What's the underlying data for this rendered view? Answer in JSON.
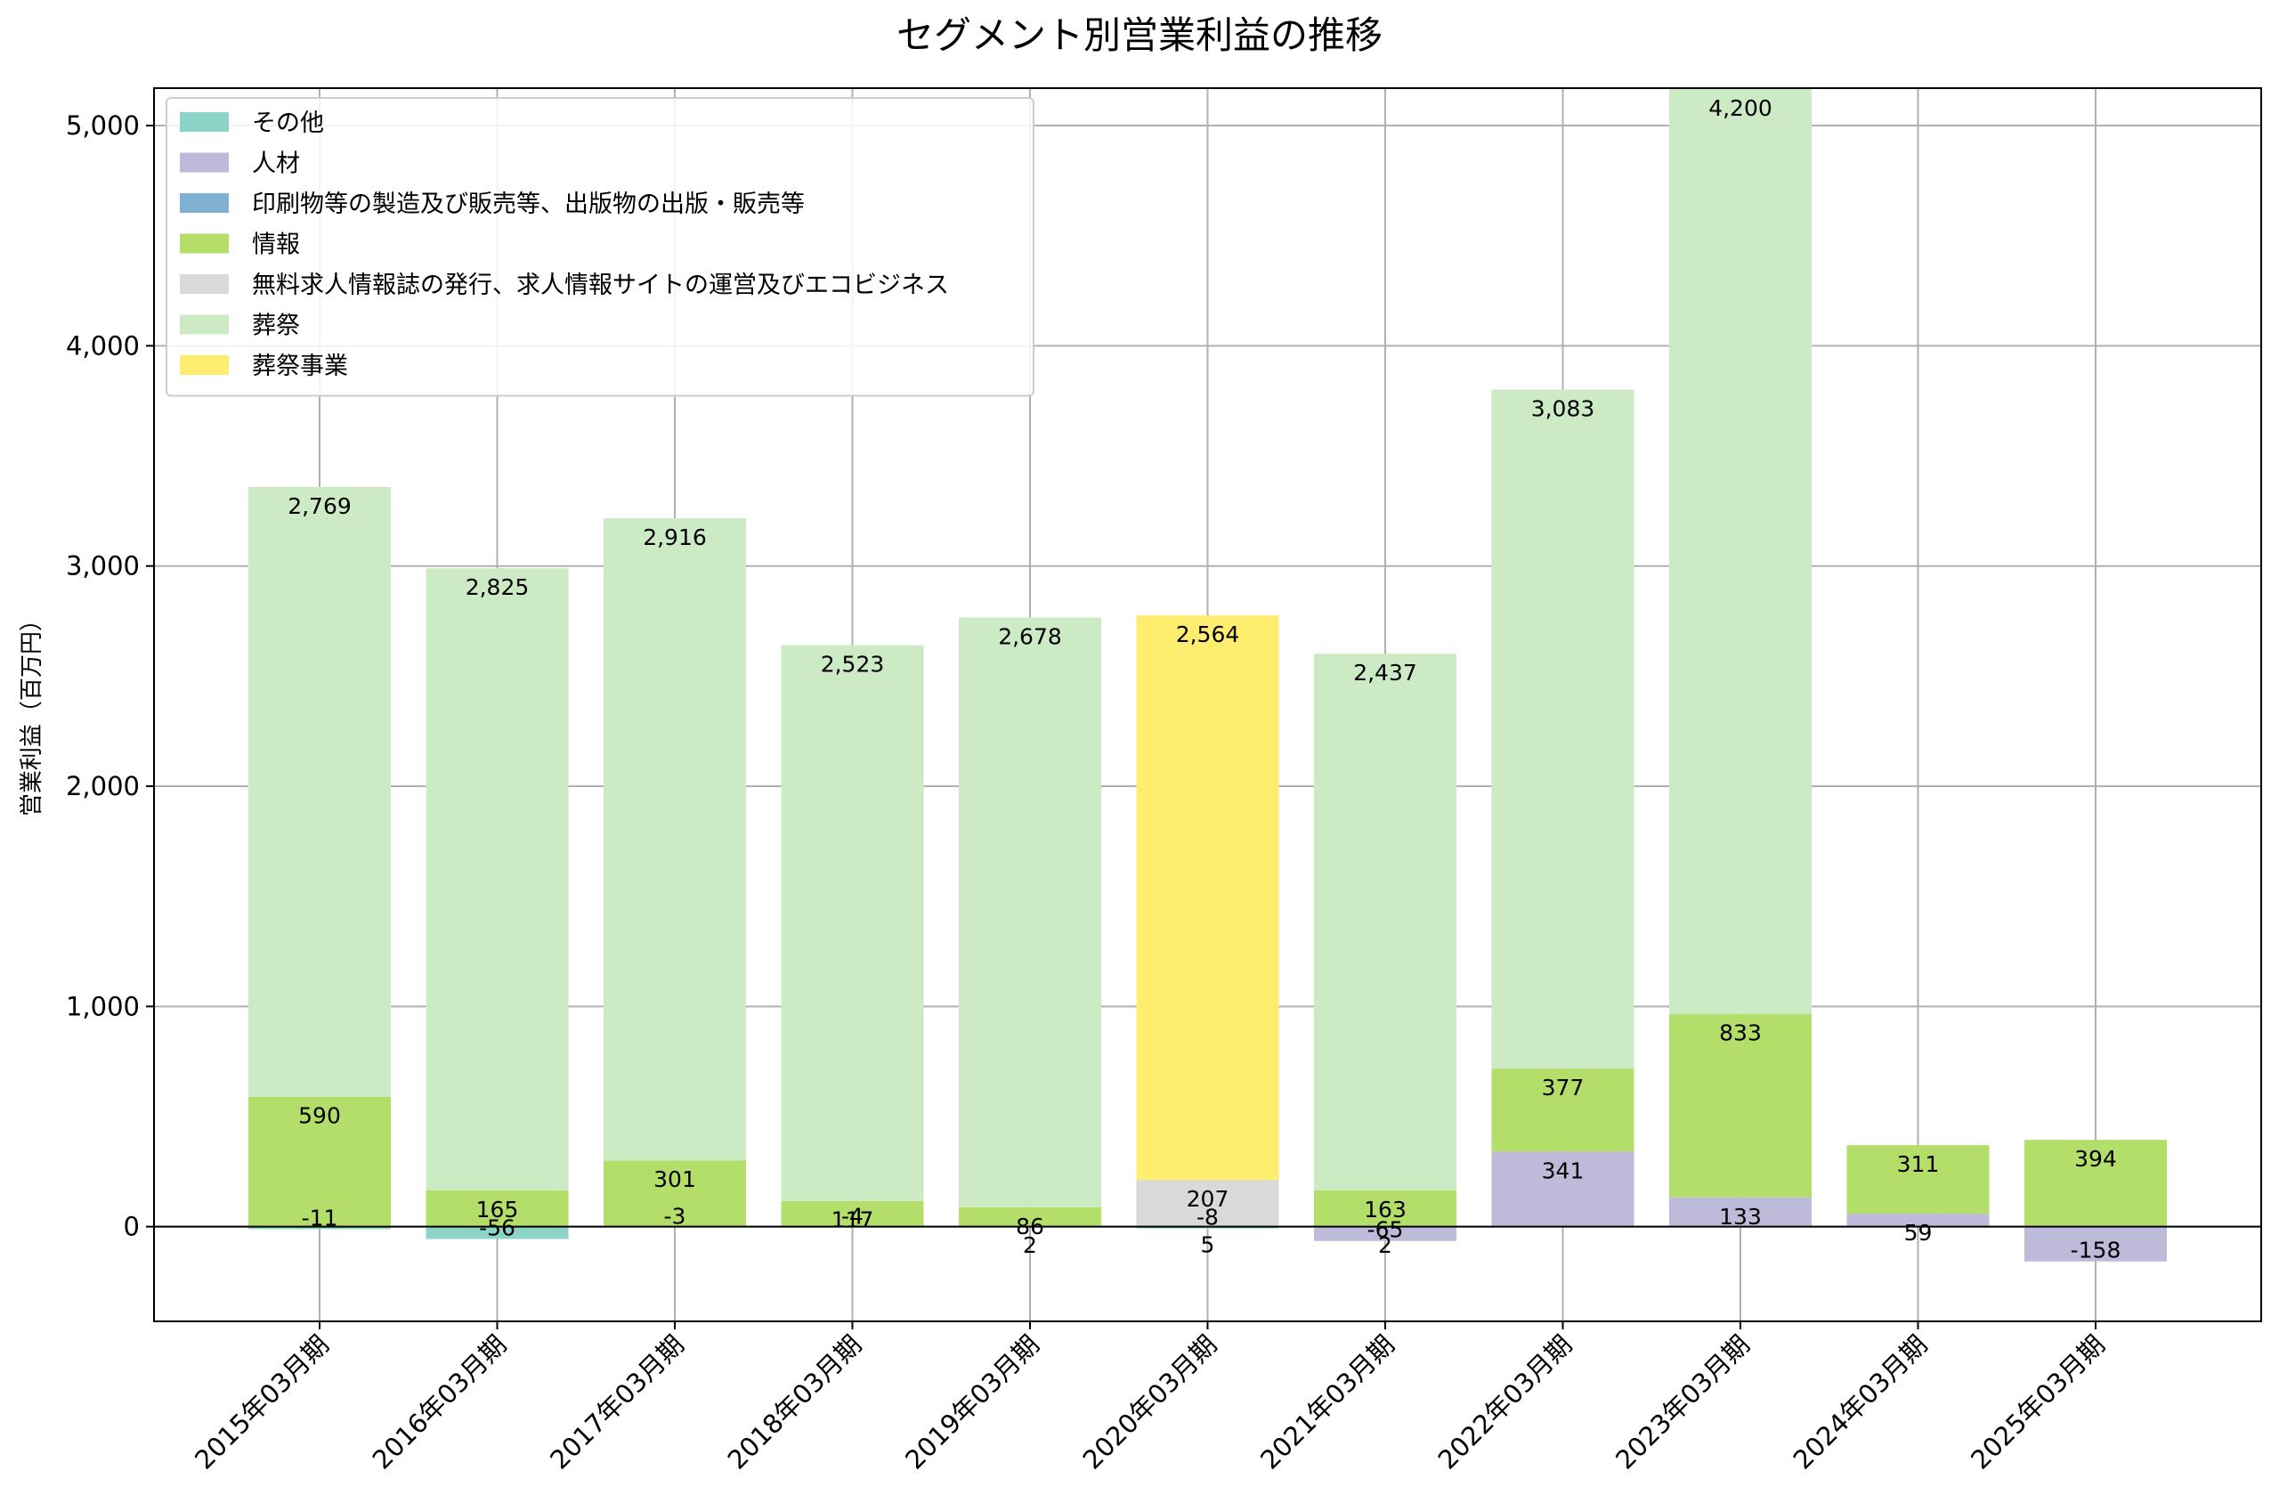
{
  "chart_data": {
    "type": "bar",
    "stacked": true,
    "title": "セグメント別営業利益の推移",
    "xlabel": "",
    "ylabel": "営業利益（百万円）",
    "ylim": [
      -430,
      5170
    ],
    "yticks": [
      0,
      1000,
      2000,
      3000,
      4000,
      5000
    ],
    "ytick_labels": [
      "0",
      "1,000",
      "2,000",
      "3,000",
      "4,000",
      "5,000"
    ],
    "grid": true,
    "legend_position": "upper-left",
    "categories": [
      "2015年03月期",
      "2016年03月期",
      "2017年03月期",
      "2018年03月期",
      "2019年03月期",
      "2020年03月期",
      "2021年03月期",
      "2022年03月期",
      "2023年03月期",
      "2024年03月期",
      "2025年03月期"
    ],
    "series": [
      {
        "name": "その他",
        "color": "#8dd3c7",
        "values": [
          -11,
          -56,
          -3,
          -4,
          null,
          -8,
          2,
          null,
          null,
          null,
          null
        ],
        "labels": [
          "-11",
          "-56",
          "-3",
          "-4",
          "",
          "-8",
          "2",
          "",
          "",
          "",
          ""
        ]
      },
      {
        "name": "人材",
        "color": "#bebada",
        "values": [
          null,
          null,
          null,
          null,
          null,
          null,
          -65,
          341,
          133,
          59,
          -158
        ],
        "labels": [
          "",
          "",
          "",
          "",
          "",
          "",
          "-65",
          "341",
          "133",
          "59",
          "-158"
        ]
      },
      {
        "name": "印刷物等の製造及び販売等、出版物の出版・販売等",
        "color": "#80b1d3",
        "values": [
          null,
          null,
          null,
          null,
          2,
          5,
          null,
          null,
          null,
          null,
          null
        ],
        "labels": [
          "",
          "",
          "",
          "",
          "2",
          "5",
          "",
          "",
          "",
          "",
          ""
        ]
      },
      {
        "name": "情報",
        "color": "#b3de69",
        "values": [
          590,
          165,
          301,
          117,
          86,
          null,
          163,
          377,
          833,
          311,
          394
        ],
        "labels": [
          "590",
          "165",
          "301",
          "117",
          "86",
          "",
          "163",
          "377",
          "833",
          "311",
          "394"
        ]
      },
      {
        "name": "無料求人情報誌の発行、求人情報サイトの運営及びエコビジネス",
        "color": "#d9d9d9",
        "values": [
          null,
          null,
          null,
          null,
          null,
          207,
          null,
          null,
          null,
          null,
          null
        ],
        "labels": [
          "",
          "",
          "",
          "",
          "",
          "207",
          "",
          "",
          "",
          "",
          ""
        ]
      },
      {
        "name": "葬祭",
        "color": "#ccebc5",
        "values": [
          2769,
          2825,
          2916,
          2523,
          2678,
          null,
          2437,
          3083,
          4200,
          null,
          null
        ],
        "labels": [
          "2,769",
          "2,825",
          "2,916",
          "2,523",
          "2,678",
          "",
          "2,437",
          "3,083",
          "4,200",
          "",
          ""
        ]
      },
      {
        "name": "葬祭事業",
        "color": "#ffed6f",
        "values": [
          null,
          null,
          null,
          null,
          null,
          2564,
          null,
          null,
          null,
          null,
          null
        ],
        "labels": [
          "",
          "",
          "",
          "",
          "",
          "2,564",
          "",
          "",
          "",
          "",
          ""
        ]
      }
    ]
  }
}
